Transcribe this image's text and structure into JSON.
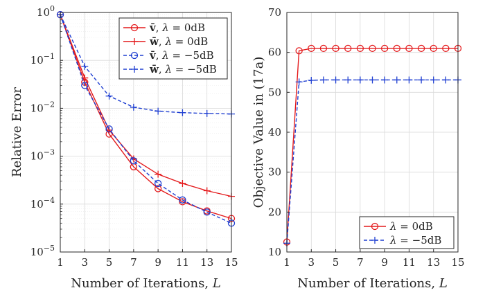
{
  "chart_data": [
    {
      "type": "line",
      "xlabel": "Number of Iterations, L",
      "ylabel": "Relative Error",
      "xlim": [
        1,
        15
      ],
      "ylim": [
        1e-05,
        1
      ],
      "yscale": "log",
      "grid": true,
      "legend": "top-right",
      "x_ticks": [
        "1",
        "3",
        "5",
        "7",
        "9",
        "11",
        "13",
        "15"
      ],
      "y_ticks": [
        "10^-5",
        "10^-4",
        "10^-3",
        "10^-2",
        "10^-1",
        "10^0"
      ],
      "series": [
        {
          "name": "v̄, λ = 0dB",
          "color": "#e41a1c",
          "dash": "solid",
          "marker": "circle",
          "x": [
            1,
            3,
            5,
            7,
            9,
            11,
            13,
            15
          ],
          "y": [
            0.9,
            0.035,
            0.0029,
            0.0006,
            0.00021,
            0.000112,
            7.2e-05,
            5e-05
          ]
        },
        {
          "name": "w̄, λ = 0dB",
          "color": "#e41a1c",
          "dash": "solid",
          "marker": "plus",
          "x": [
            1,
            3,
            5,
            7,
            9,
            11,
            13,
            15
          ],
          "y": [
            0.9,
            0.043,
            0.0035,
            0.00088,
            0.00042,
            0.00027,
            0.00019,
            0.000145
          ]
        },
        {
          "name": "v̄, λ = −5dB",
          "color": "#1f3fd1",
          "dash": "dashed",
          "marker": "circle",
          "x": [
            1,
            3,
            5,
            7,
            9,
            11,
            13,
            15
          ],
          "y": [
            0.9,
            0.03,
            0.0037,
            0.0008,
            0.00027,
            0.000122,
            6.8e-05,
            4e-05
          ]
        },
        {
          "name": "w̄, λ = −5dB",
          "color": "#1f3fd1",
          "dash": "dashed",
          "marker": "plus",
          "x": [
            1,
            3,
            5,
            7,
            9,
            11,
            13,
            15
          ],
          "y": [
            0.9,
            0.075,
            0.018,
            0.0105,
            0.0087,
            0.0081,
            0.0078,
            0.0076
          ]
        }
      ]
    },
    {
      "type": "line",
      "xlabel": "Number of Iterations, L",
      "ylabel": "Objective Value in (17a)",
      "xlim": [
        1,
        15
      ],
      "ylim": [
        10,
        70
      ],
      "yscale": "linear",
      "grid": true,
      "legend": "bottom-right",
      "x_ticks": [
        "1",
        "3",
        "5",
        "7",
        "9",
        "11",
        "13",
        "15"
      ],
      "y_ticks": [
        "10",
        "20",
        "30",
        "40",
        "50",
        "60",
        "70"
      ],
      "series": [
        {
          "name": "λ = 0dB",
          "color": "#e41a1c",
          "dash": "solid",
          "marker": "circle",
          "x": [
            1,
            2,
            3,
            4,
            5,
            6,
            7,
            8,
            9,
            10,
            11,
            12,
            13,
            14,
            15
          ],
          "y": [
            12.5,
            60.4,
            61.0,
            61.0,
            61.0,
            61.0,
            61.0,
            61.0,
            61.0,
            61.0,
            61.0,
            61.0,
            61.0,
            61.0,
            61.0
          ]
        },
        {
          "name": "λ = −5dB",
          "color": "#1f3fd1",
          "dash": "dashed",
          "marker": "plus",
          "x": [
            1,
            2,
            3,
            4,
            5,
            6,
            7,
            8,
            9,
            10,
            11,
            12,
            13,
            14,
            15
          ],
          "y": [
            12.2,
            52.6,
            53.0,
            53.1,
            53.1,
            53.1,
            53.1,
            53.1,
            53.1,
            53.1,
            53.1,
            53.1,
            53.1,
            53.1,
            53.1
          ]
        }
      ]
    }
  ]
}
